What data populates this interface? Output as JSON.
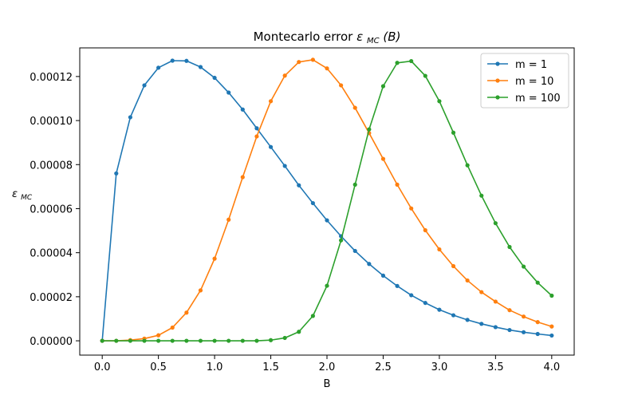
{
  "chart_data": {
    "type": "line",
    "title": "Montecarlo error εMC(B)",
    "title_main": "Montecarlo error ",
    "title_math": "ε",
    "title_math_sub": "MC",
    "title_math_arg": "(B)",
    "xlabel": "B",
    "ylabel": "ε",
    "ylabel_sub": "MC",
    "xlim": [
      -0.2,
      4.2
    ],
    "ylim": [
      -6.5e-06,
      0.000133
    ],
    "xticks": [
      0.0,
      0.5,
      1.0,
      1.5,
      2.0,
      2.5,
      3.0,
      3.5,
      4.0
    ],
    "xtick_labels": [
      "0.0",
      "0.5",
      "1.0",
      "1.5",
      "2.0",
      "2.5",
      "3.0",
      "3.5",
      "4.0"
    ],
    "yticks": [
      0,
      2e-05,
      4e-05,
      6e-05,
      8e-05,
      0.0001,
      0.00012
    ],
    "ytick_labels": [
      "0.00000",
      "0.00002",
      "0.00004",
      "0.00006",
      "0.00008",
      "0.00010",
      "0.00012"
    ],
    "legend_position": "top-right",
    "x": [
      0.0,
      0.125,
      0.25,
      0.375,
      0.5,
      0.625,
      0.75,
      0.875,
      1.0,
      1.125,
      1.25,
      1.375,
      1.5,
      1.625,
      1.75,
      1.875,
      2.0,
      2.125,
      2.25,
      2.375,
      2.5,
      2.625,
      2.75,
      2.875,
      3.0,
      3.125,
      3.25,
      3.375,
      3.5,
      3.625,
      3.75,
      3.875,
      4.0
    ],
    "series": [
      {
        "name": "m = 1",
        "color": "#1f77b4",
        "values": [
          0.0,
          7.6e-05,
          0.0001015,
          0.000116,
          0.000124,
          0.0001272,
          0.0001271,
          0.0001243,
          0.0001194,
          0.0001127,
          0.000105,
          9.65e-05,
          8.8e-05,
          7.94e-05,
          7.06e-05,
          6.25e-05,
          5.47e-05,
          4.75e-05,
          4.08e-05,
          3.49e-05,
          2.96e-05,
          2.49e-05,
          2.07e-05,
          1.72e-05,
          1.41e-05,
          1.16e-05,
          9.5e-06,
          7.7e-06,
          6.2e-06,
          4.9e-06,
          3.9e-06,
          3.1e-06,
          2.4e-06
        ]
      },
      {
        "name": "m = 10",
        "color": "#ff7f0e",
        "values": [
          0.0,
          0.0,
          3e-07,
          1e-06,
          2.5e-06,
          6e-06,
          1.28e-05,
          2.29e-05,
          3.73e-05,
          5.5e-05,
          7.43e-05,
          9.28e-05,
          0.0001088,
          0.0001204,
          0.0001266,
          0.0001276,
          0.0001237,
          0.000116,
          0.0001058,
          9.43e-05,
          8.26e-05,
          7.09e-05,
          6.01e-05,
          5.02e-05,
          4.15e-05,
          3.39e-05,
          2.74e-05,
          2.21e-05,
          1.78e-05,
          1.39e-05,
          1.1e-05,
          8.5e-06,
          6.5e-06
        ]
      },
      {
        "name": "m = 100",
        "color": "#2ca02c",
        "values": [
          0.0,
          0.0,
          0.0,
          0.0,
          0.0,
          0.0,
          0.0,
          0.0,
          0.0,
          0.0,
          0.0,
          0.0,
          3e-07,
          1.3e-06,
          4.1e-06,
          1.13e-05,
          2.5e-05,
          4.56e-05,
          7.09e-05,
          9.6e-05,
          0.0001156,
          0.0001262,
          0.000127,
          0.0001203,
          0.0001088,
          9.45e-05,
          7.97e-05,
          6.59e-05,
          5.34e-05,
          4.26e-05,
          3.37e-05,
          2.64e-05,
          2.05e-05
        ]
      }
    ]
  }
}
